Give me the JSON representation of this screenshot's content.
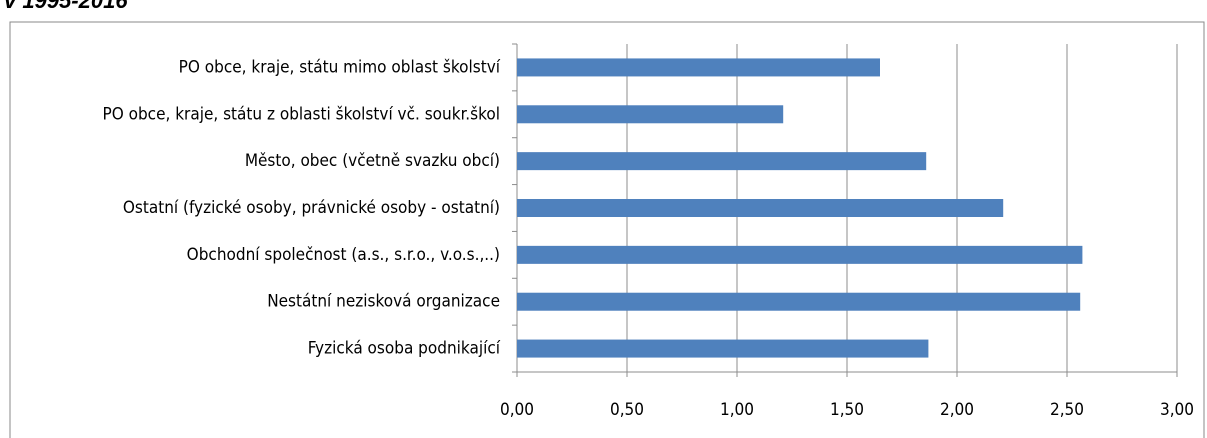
{
  "chart_data": {
    "type": "hbar",
    "title": "v 1995-2016",
    "categories": [
      "PO obce, kraje, státu mimo oblast školství",
      "PO obce, kraje, státu z oblasti školství vč. soukr.škol",
      "Město, obec (včetně svazku obcí)",
      "Ostatní (fyzické osoby, právnické osoby - ostatní)",
      "Obchodní společnost (a.s., s.r.o., v.o.s.,..)",
      "Nestátní nezisková organizace",
      "Fyzická osoba podnikající"
    ],
    "values": [
      1.65,
      1.21,
      1.86,
      2.21,
      2.57,
      2.56,
      1.87
    ],
    "color": "#4f81bd",
    "xlim": [
      0,
      3
    ],
    "xticks": [
      {
        "value": 0,
        "label": "0,00"
      },
      {
        "value": 0.5,
        "label": "0,50"
      },
      {
        "value": 1,
        "label": "1,00"
      },
      {
        "value": 1.5,
        "label": "1,50"
      },
      {
        "value": 2,
        "label": "2,00"
      },
      {
        "value": 2.5,
        "label": "2,50"
      },
      {
        "value": 3,
        "label": "3,00"
      }
    ],
    "grid": true
  }
}
